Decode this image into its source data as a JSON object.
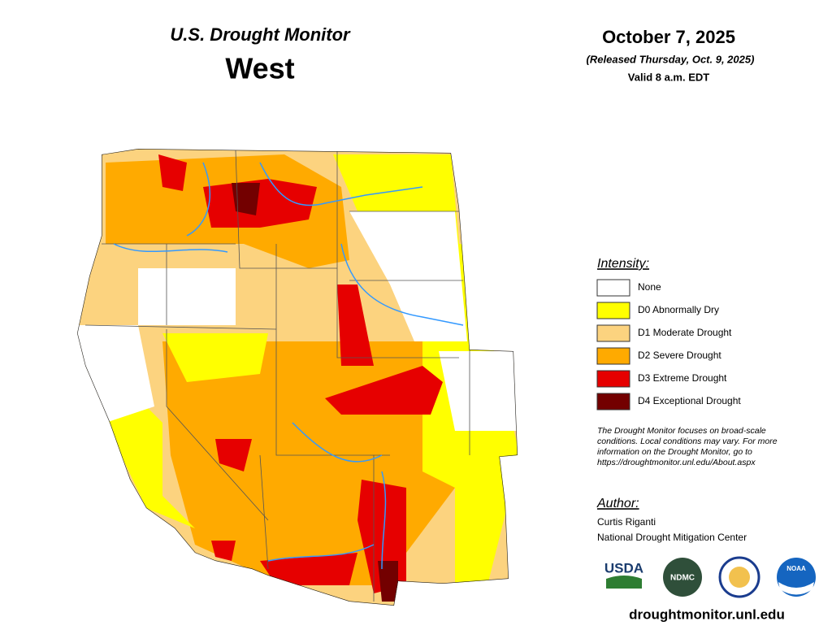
{
  "header": {
    "title": "U.S. Drought Monitor",
    "region": "West"
  },
  "date": {
    "date": "October 7, 2025",
    "released": "(Released Thursday, Oct. 9, 2025)",
    "valid": "Valid 8 a.m. EDT"
  },
  "legend": {
    "title": "Intensity:",
    "items": [
      {
        "label": "None",
        "color": "#ffffff"
      },
      {
        "label": "D0 Abnormally Dry",
        "color": "#ffff00"
      },
      {
        "label": "D1 Moderate Drought",
        "color": "#fcd37f"
      },
      {
        "label": "D2 Severe Drought",
        "color": "#ffaa00"
      },
      {
        "label": "D3 Extreme Drought",
        "color": "#e60000"
      },
      {
        "label": "D4 Exceptional Drought",
        "color": "#730000"
      }
    ]
  },
  "note": [
    "The Drought Monitor focuses on broad-scale",
    "conditions. Local conditions may vary. For more",
    "information on the Drought Monitor, go to",
    "https://droughtmonitor.unl.edu/About.aspx"
  ],
  "author": {
    "title": "Author:",
    "name": "Curtis Riganti",
    "org": "National Drought Mitigation Center"
  },
  "logos": [
    "USDA",
    "NDMC",
    "NOAA"
  ],
  "website": "droughtmonitor.unl.edu"
}
